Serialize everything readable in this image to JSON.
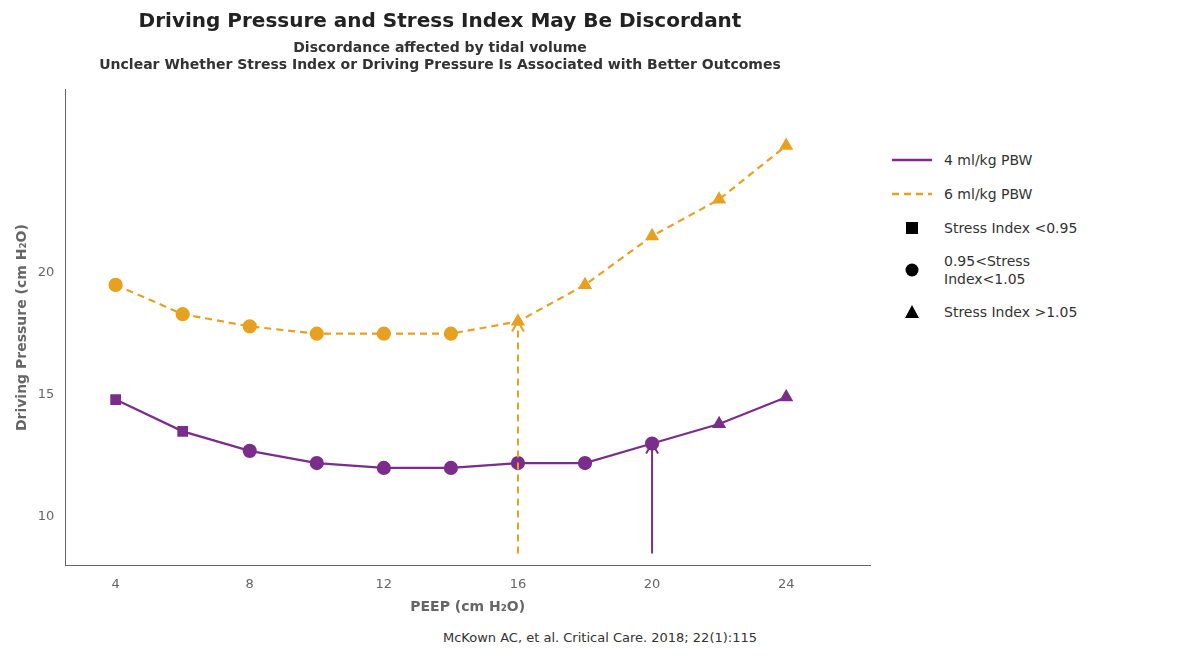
{
  "chart_data": {
    "type": "line",
    "title": "Driving Pressure and Stress Index May Be Discordant",
    "subtitle": [
      "Discordance affected by tidal volume",
      "Unclear Whether Stress Index or Driving Pressure Is Associated with Better Outcomes"
    ],
    "x_label": "PEEP (cm H₂O)",
    "y_label": "Driving Pressure (cm H₂O)",
    "x": [
      4,
      6,
      8,
      10,
      12,
      14,
      16,
      18,
      20,
      22,
      24
    ],
    "series": [
      {
        "name": "4 ml/kg PBW",
        "color": "#7B2D8B",
        "line_style": "solid",
        "values": [
          14.8,
          13.5,
          12.7,
          12.2,
          12.0,
          12.0,
          12.2,
          12.2,
          13.0,
          13.8,
          14.9
        ],
        "markers": [
          "square",
          "square",
          "circle",
          "circle",
          "circle",
          "circle",
          "circle",
          "circle",
          "circle",
          "triangle",
          "triangle"
        ]
      },
      {
        "name": "6 ml/kg PBW",
        "color": "#E8A020",
        "line_style": "dashed",
        "values": [
          19.5,
          18.3,
          17.8,
          17.5,
          17.5,
          17.5,
          18.0,
          19.5,
          21.5,
          23.0,
          25.2
        ],
        "markers": [
          "circle",
          "circle",
          "circle",
          "circle",
          "circle",
          "circle",
          "triangle",
          "triangle",
          "triangle",
          "triangle",
          "triangle"
        ]
      }
    ],
    "marker_legend": [
      {
        "marker": "square",
        "label": "Stress Index <0.95",
        "color": "#000000"
      },
      {
        "marker": "circle",
        "label": "0.95<Stress\nIndex<1.05",
        "color": "#000000"
      },
      {
        "marker": "triangle",
        "label": "Stress Index >1.05",
        "color": "#000000"
      }
    ],
    "annotations": [
      {
        "type": "arrow",
        "x": 16,
        "y": [
          8.5,
          18.0
        ],
        "color": "#E8A020",
        "line_style": "dashed"
      },
      {
        "type": "arrow",
        "x": 20,
        "y": [
          8.5,
          13.0
        ],
        "color": "#7B2D8B",
        "line_style": "solid"
      },
      {
        "type": "text",
        "text": "McKown AC, et al. Critical Care. 2018; 22(1):115"
      }
    ],
    "xlim": [
      2.5,
      26.5
    ],
    "xticks": [
      4,
      8,
      12,
      16,
      20,
      24
    ],
    "ylim": [
      8.0,
      27.5
    ],
    "yticks": [
      10,
      15,
      20
    ],
    "grid": false,
    "legend": "right"
  }
}
